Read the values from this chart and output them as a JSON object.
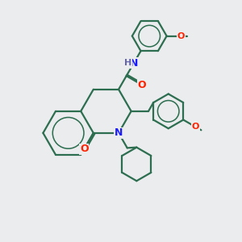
{
  "bg_color": "#eaecee",
  "bond_color": "#2d6e50",
  "bond_width": 1.6,
  "n_color": "#1a1aff",
  "o_color": "#ff2200",
  "h_color": "#6666aa",
  "font_size": 9,
  "label_font_size": 8,
  "xlim": [
    0,
    10
  ],
  "ylim": [
    0,
    10
  ]
}
